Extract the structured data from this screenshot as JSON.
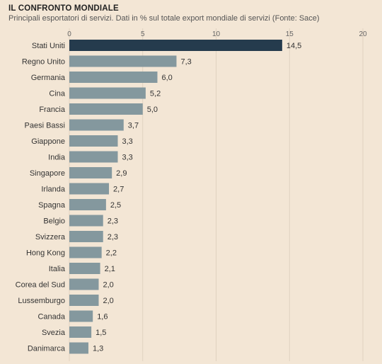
{
  "title": "IL CONFRONTO MONDIALE",
  "subtitle": "Principali esportatori di servizi. Dati in % sul totale export mondiale di servizi (Fonte: Sace)",
  "colors": {
    "background": "#f3e6d5",
    "highlight_bar": "#253b4d",
    "bar": "#84989e",
    "grid": "#e0d2c0"
  },
  "chart_data": {
    "type": "bar",
    "orientation": "horizontal",
    "categories": [
      "Stati Uniti",
      "Regno Unito",
      "Germania",
      "Cina",
      "Francia",
      "Paesi Bassi",
      "Giappone",
      "India",
      "Singapore",
      "Irlanda",
      "Spagna",
      "Belgio",
      "Svizzera",
      "Hong Kong",
      "Italia",
      "Corea del Sud",
      "Lussemburgo",
      "Canada",
      "Svezia",
      "Danimarca"
    ],
    "values": [
      14.5,
      7.3,
      6.0,
      5.2,
      5.0,
      3.7,
      3.3,
      3.3,
      2.9,
      2.7,
      2.5,
      2.3,
      2.3,
      2.2,
      2.1,
      2.0,
      2.0,
      1.6,
      1.5,
      1.3
    ],
    "value_labels": [
      "14,5",
      "7,3",
      "6,0",
      "5,2",
      "5,0",
      "3,7",
      "3,3",
      "3,3",
      "2,9",
      "2,7",
      "2,5",
      "2,3",
      "2,3",
      "2,2",
      "2,1",
      "2,0",
      "2,0",
      "1,6",
      "1,5",
      "1,3"
    ],
    "xlim": [
      0,
      20
    ],
    "xticks": [
      0,
      5,
      10,
      15,
      20
    ],
    "xtick_position": "top",
    "grid": true,
    "highlighted_category": "Stati Uniti"
  }
}
